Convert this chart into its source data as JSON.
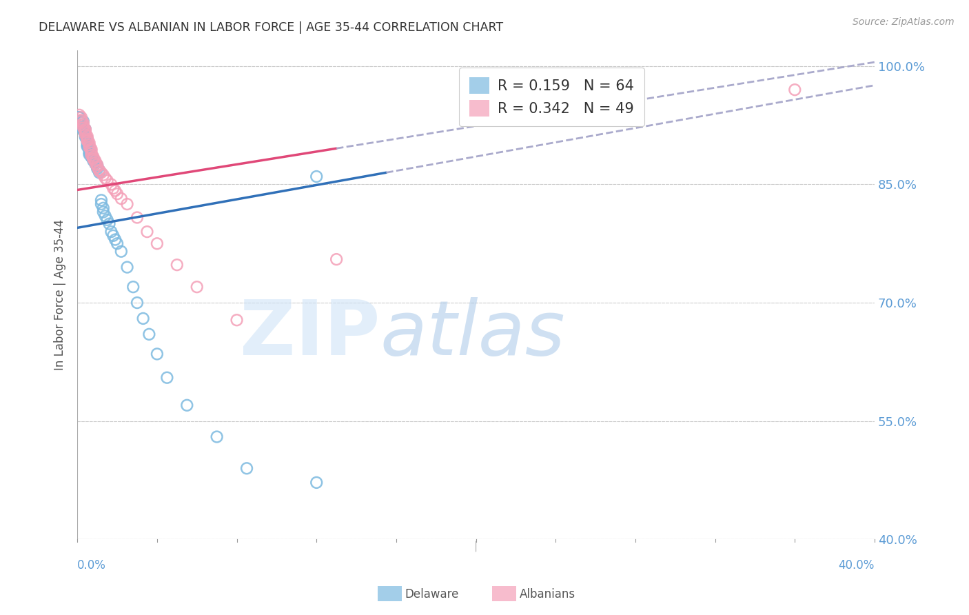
{
  "title": "DELAWARE VS ALBANIAN IN LABOR FORCE | AGE 35-44 CORRELATION CHART",
  "source": "Source: ZipAtlas.com",
  "ylabel": "In Labor Force | Age 35-44",
  "xmin": 0.0,
  "xmax": 0.4,
  "ymin": 0.4,
  "ymax": 1.02,
  "yticks": [
    0.4,
    0.55,
    0.7,
    0.85,
    1.0
  ],
  "ytick_labels": [
    "40.0%",
    "55.0%",
    "70.0%",
    "85.0%",
    "100.0%"
  ],
  "legend_blue_r": "0.159",
  "legend_blue_n": "64",
  "legend_pink_r": "0.342",
  "legend_pink_n": "49",
  "blue_color": "#7dbae0",
  "pink_color": "#f4a0b8",
  "blue_line_color": "#3070b8",
  "pink_line_color": "#e04878",
  "dashed_line_color": "#aaaacc",
  "background_color": "#ffffff",
  "grid_color": "#cccccc",
  "title_color": "#333333",
  "axis_color": "#5b9bd5",
  "blue_line_x0": 0.0,
  "blue_line_y0": 0.795,
  "blue_line_x1": 0.155,
  "blue_line_y1": 0.865,
  "pink_line_x0": 0.0,
  "pink_line_y0": 0.843,
  "pink_line_x1": 0.4,
  "pink_line_y1": 1.005,
  "blue_scatter": [
    [
      0.001,
      0.935
    ],
    [
      0.001,
      0.935
    ],
    [
      0.001,
      0.93
    ],
    [
      0.002,
      0.93
    ],
    [
      0.002,
      0.93
    ],
    [
      0.002,
      0.928
    ],
    [
      0.002,
      0.925
    ],
    [
      0.003,
      0.93
    ],
    [
      0.003,
      0.925
    ],
    [
      0.003,
      0.922
    ],
    [
      0.003,
      0.92
    ],
    [
      0.003,
      0.918
    ],
    [
      0.004,
      0.92
    ],
    [
      0.004,
      0.918
    ],
    [
      0.004,
      0.915
    ],
    [
      0.004,
      0.912
    ],
    [
      0.004,
      0.91
    ],
    [
      0.005,
      0.908
    ],
    [
      0.005,
      0.905
    ],
    [
      0.005,
      0.903
    ],
    [
      0.005,
      0.9
    ],
    [
      0.005,
      0.898
    ],
    [
      0.006,
      0.896
    ],
    [
      0.006,
      0.893
    ],
    [
      0.006,
      0.89
    ],
    [
      0.006,
      0.888
    ],
    [
      0.007,
      0.888
    ],
    [
      0.007,
      0.886
    ],
    [
      0.007,
      0.885
    ],
    [
      0.007,
      0.885
    ],
    [
      0.008,
      0.883
    ],
    [
      0.008,
      0.882
    ],
    [
      0.008,
      0.88
    ],
    [
      0.009,
      0.878
    ],
    [
      0.009,
      0.876
    ],
    [
      0.01,
      0.874
    ],
    [
      0.01,
      0.872
    ],
    [
      0.01,
      0.87
    ],
    [
      0.011,
      0.868
    ],
    [
      0.011,
      0.865
    ],
    [
      0.012,
      0.83
    ],
    [
      0.012,
      0.825
    ],
    [
      0.013,
      0.82
    ],
    [
      0.013,
      0.815
    ],
    [
      0.014,
      0.81
    ],
    [
      0.015,
      0.805
    ],
    [
      0.016,
      0.8
    ],
    [
      0.017,
      0.79
    ],
    [
      0.018,
      0.785
    ],
    [
      0.019,
      0.78
    ],
    [
      0.02,
      0.775
    ],
    [
      0.022,
      0.765
    ],
    [
      0.025,
      0.745
    ],
    [
      0.028,
      0.72
    ],
    [
      0.03,
      0.7
    ],
    [
      0.033,
      0.68
    ],
    [
      0.036,
      0.66
    ],
    [
      0.04,
      0.635
    ],
    [
      0.045,
      0.605
    ],
    [
      0.055,
      0.57
    ],
    [
      0.07,
      0.53
    ],
    [
      0.085,
      0.49
    ],
    [
      0.12,
      0.472
    ],
    [
      0.12,
      0.86
    ]
  ],
  "pink_scatter": [
    [
      0.001,
      0.938
    ],
    [
      0.002,
      0.935
    ],
    [
      0.002,
      0.932
    ],
    [
      0.002,
      0.93
    ],
    [
      0.003,
      0.928
    ],
    [
      0.003,
      0.925
    ],
    [
      0.003,
      0.922
    ],
    [
      0.004,
      0.92
    ],
    [
      0.004,
      0.918
    ],
    [
      0.004,
      0.916
    ],
    [
      0.004,
      0.913
    ],
    [
      0.005,
      0.911
    ],
    [
      0.005,
      0.908
    ],
    [
      0.005,
      0.906
    ],
    [
      0.005,
      0.905
    ],
    [
      0.006,
      0.903
    ],
    [
      0.006,
      0.9
    ],
    [
      0.006,
      0.897
    ],
    [
      0.007,
      0.895
    ],
    [
      0.007,
      0.893
    ],
    [
      0.007,
      0.89
    ],
    [
      0.007,
      0.887
    ],
    [
      0.008,
      0.885
    ],
    [
      0.008,
      0.883
    ],
    [
      0.008,
      0.882
    ],
    [
      0.009,
      0.88
    ],
    [
      0.009,
      0.877
    ],
    [
      0.01,
      0.875
    ],
    [
      0.01,
      0.872
    ],
    [
      0.011,
      0.868
    ],
    [
      0.011,
      0.867
    ],
    [
      0.012,
      0.865
    ],
    [
      0.013,
      0.862
    ],
    [
      0.014,
      0.858
    ],
    [
      0.015,
      0.855
    ],
    [
      0.017,
      0.85
    ],
    [
      0.018,
      0.845
    ],
    [
      0.019,
      0.842
    ],
    [
      0.02,
      0.838
    ],
    [
      0.022,
      0.832
    ],
    [
      0.025,
      0.825
    ],
    [
      0.03,
      0.808
    ],
    [
      0.035,
      0.79
    ],
    [
      0.04,
      0.775
    ],
    [
      0.05,
      0.748
    ],
    [
      0.06,
      0.72
    ],
    [
      0.08,
      0.678
    ],
    [
      0.13,
      0.755
    ],
    [
      0.36,
      0.97
    ]
  ]
}
